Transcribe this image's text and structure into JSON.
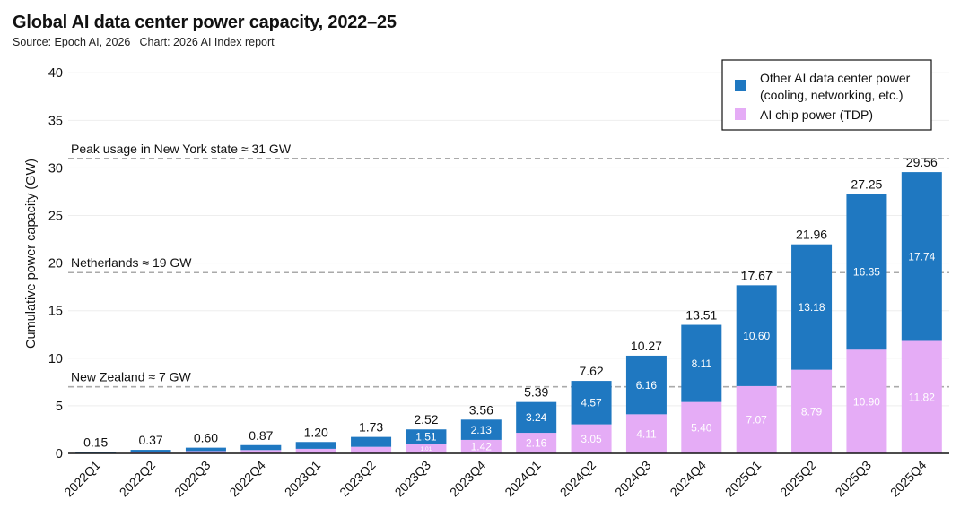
{
  "title": "Global AI data center power capacity, 2022–25",
  "source": "Source: Epoch AI, 2026 | Chart: 2026 AI Index report",
  "colors": {
    "other_power": "#1f78c1",
    "chip_power": "#e5acf6",
    "reference_line": "#aaaaaa",
    "grid": "#eeeeee"
  },
  "chart_data": {
    "type": "bar",
    "stacked": true,
    "ylabel": "Cumulative power capacity (GW)",
    "ylim": [
      0,
      42
    ],
    "yticks": [
      0,
      5,
      10,
      15,
      20,
      25,
      30,
      35,
      40
    ],
    "grid": true,
    "legend_position": "top-right",
    "categories": [
      "2022Q1",
      "2022Q2",
      "2022Q3",
      "2022Q4",
      "2023Q1",
      "2023Q2",
      "2023Q3",
      "2023Q4",
      "2024Q1",
      "2024Q2",
      "2024Q3",
      "2024Q4",
      "2025Q1",
      "2025Q2",
      "2025Q3",
      "2025Q4"
    ],
    "series": [
      {
        "name": "AI chip power (TDP)",
        "values": [
          0.06,
          0.15,
          0.24,
          0.35,
          0.48,
          0.69,
          1.01,
          1.42,
          2.16,
          3.05,
          4.11,
          5.4,
          7.07,
          8.79,
          10.9,
          11.82
        ],
        "labels": [
          "",
          "",
          "",
          "",
          "",
          "",
          "1.01",
          "1.42",
          "2.16",
          "3.05",
          "4.11",
          "5.40",
          "7.07",
          "8.79",
          "10.90",
          "11.82"
        ]
      },
      {
        "name": "Other AI data center power (cooling, networking, etc.)",
        "legend_lines": [
          "Other AI data center power",
          "(cooling, networking, etc.)"
        ],
        "values": [
          0.09,
          0.22,
          0.36,
          0.52,
          0.72,
          1.04,
          1.51,
          2.13,
          3.24,
          4.57,
          6.16,
          8.11,
          10.6,
          13.18,
          16.35,
          17.74
        ],
        "labels": [
          "",
          "",
          "",
          "",
          "",
          "",
          "1.51",
          "2.13",
          "3.24",
          "4.57",
          "6.16",
          "8.11",
          "10.60",
          "13.18",
          "16.35",
          "17.74"
        ]
      }
    ],
    "totals": [
      "0.15",
      "0.37",
      "0.60",
      "0.87",
      "1.20",
      "1.73",
      "2.52",
      "3.56",
      "5.39",
      "7.62",
      "10.27",
      "13.51",
      "17.67",
      "21.96",
      "27.25",
      "29.56"
    ],
    "reference_lines": [
      {
        "label": "Peak usage in New York state ≈ 31 GW",
        "value": 31
      },
      {
        "label": "Netherlands ≈ 19 GW",
        "value": 19
      },
      {
        "label": "New Zealand ≈ 7 GW",
        "value": 7
      }
    ]
  }
}
